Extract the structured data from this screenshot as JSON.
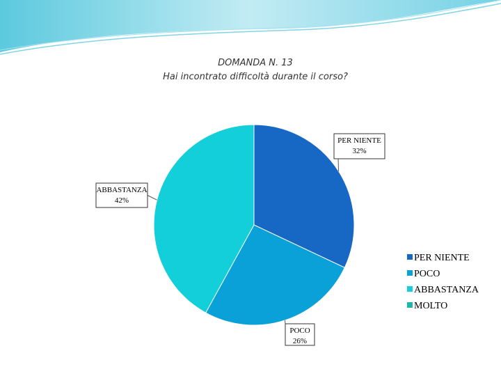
{
  "chart_data": {
    "type": "pie",
    "title": "DOMANDA N. 13",
    "subtitle": "Hai incontrato difficoltà durante il corso?",
    "categories": [
      "PER NIENTE",
      "POCO",
      "ABBASTANZA",
      "MOLTO"
    ],
    "values": [
      32,
      26,
      42,
      0
    ],
    "value_labels": [
      "32%",
      "26%",
      "42%",
      null
    ],
    "colors": [
      "#1668c4",
      "#0aa0d8",
      "#13cfd9",
      "#1db7a6"
    ],
    "legend": "right"
  }
}
